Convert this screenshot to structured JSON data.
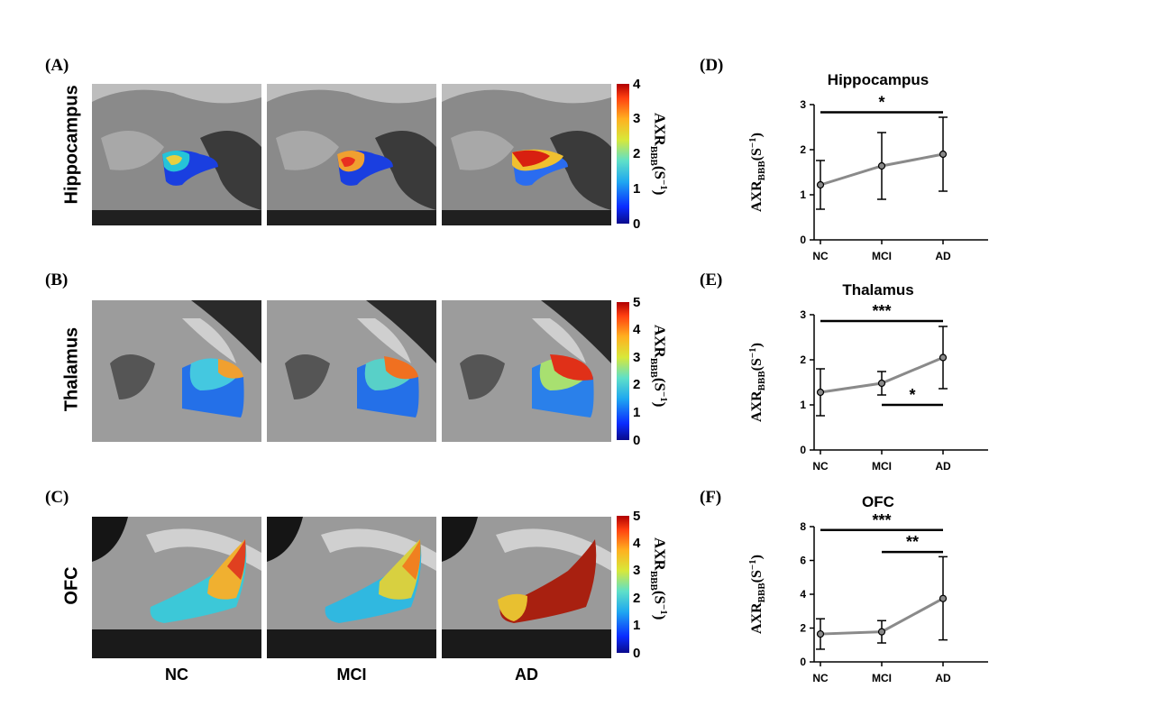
{
  "panels_left": {
    "A": {
      "letter": "(A)",
      "region": "Hippocampus",
      "cbar_ticks": [
        "4",
        "3",
        "2",
        "1",
        "0"
      ]
    },
    "B": {
      "letter": "(B)",
      "region": "Thalamus",
      "cbar_ticks": [
        "5",
        "4",
        "3",
        "2",
        "1",
        "0"
      ]
    },
    "C": {
      "letter": "(C)",
      "region": "OFC",
      "cbar_ticks": [
        "5",
        "4",
        "3",
        "2",
        "1",
        "0"
      ]
    }
  },
  "colorbar_label": "AXR",
  "colorbar_label_sub": "BBB",
  "colorbar_label_unit": "(S",
  "colorbar_label_sup": "−1",
  "colorbar_label_end": ")",
  "columns": [
    "NC",
    "MCI",
    "AD"
  ],
  "chart_data": [
    {
      "letter": "(D)",
      "type": "line",
      "title": "Hippocampus",
      "categories": [
        "NC",
        "MCI",
        "AD"
      ],
      "values": [
        1.22,
        1.64,
        1.9
      ],
      "err_low": [
        0.68,
        0.9,
        1.08
      ],
      "err_high": [
        1.76,
        2.38,
        2.72
      ],
      "ylim": [
        0,
        3
      ],
      "yticks": [
        "0",
        "1",
        "2",
        "3"
      ],
      "ylabel": "AXR",
      "ylabel_sub": "BBB",
      "ylabel_rest": "(S",
      "ylabel_sup": "−1",
      "ylabel_end": ")",
      "sig": [
        {
          "from": 0,
          "to": 2,
          "level": 2.83,
          "label": "*"
        }
      ]
    },
    {
      "letter": "(E)",
      "type": "line",
      "title": "Thalamus",
      "categories": [
        "NC",
        "MCI",
        "AD"
      ],
      "values": [
        1.28,
        1.48,
        2.05
      ],
      "err_low": [
        0.76,
        1.22,
        1.36
      ],
      "err_high": [
        1.8,
        1.74,
        2.74
      ],
      "ylim": [
        0,
        3
      ],
      "yticks": [
        "0",
        "1",
        "2",
        "3"
      ],
      "ylabel": "AXR",
      "ylabel_sub": "BBB",
      "ylabel_rest": "(S",
      "ylabel_sup": "−1",
      "ylabel_end": ")",
      "sig": [
        {
          "from": 0,
          "to": 2,
          "level": 2.86,
          "label": "***"
        },
        {
          "from": 1,
          "to": 2,
          "level": 1.0,
          "label": "*"
        }
      ]
    },
    {
      "letter": "(F)",
      "type": "line",
      "title": "OFC",
      "categories": [
        "NC",
        "MCI",
        "AD"
      ],
      "values": [
        1.65,
        1.78,
        3.75
      ],
      "err_low": [
        0.75,
        1.12,
        1.3
      ],
      "err_high": [
        2.55,
        2.44,
        6.22
      ],
      "ylim": [
        0,
        8
      ],
      "yticks": [
        "0",
        "2",
        "4",
        "6",
        "8"
      ],
      "ylabel": "AXR",
      "ylabel_sub": "BBB",
      "ylabel_rest": "(S",
      "ylabel_sup": "−1",
      "ylabel_end": ")",
      "sig": [
        {
          "from": 0,
          "to": 2,
          "level": 7.8,
          "label": "***"
        },
        {
          "from": 1,
          "to": 2,
          "level": 6.5,
          "label": "**"
        }
      ]
    }
  ]
}
